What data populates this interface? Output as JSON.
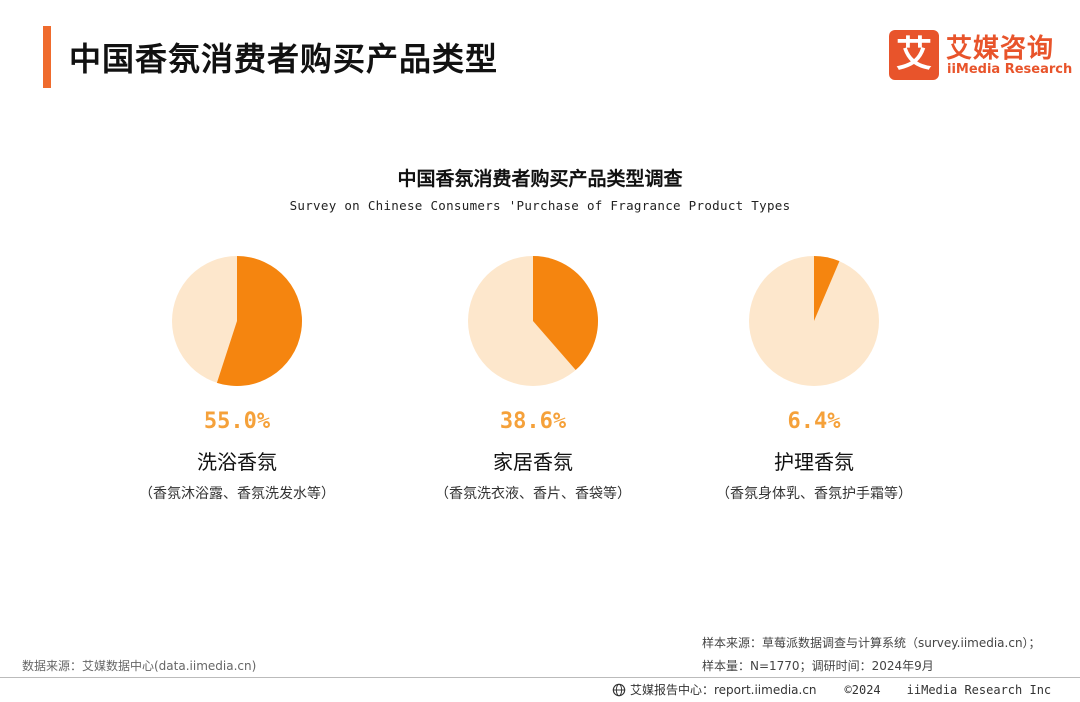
{
  "header": {
    "title": "中国香氛消费者购买产品类型",
    "logo_mark": "艾",
    "logo_cn": "艾媒咨询",
    "logo_en": "iiMedia Research"
  },
  "colors": {
    "accent": "#ef6b2d",
    "slice": "#f5850f",
    "rest": "#fde7cc",
    "value_text": "#f5a13a"
  },
  "chart_data": {
    "type": "pie",
    "title": "中国香氛消费者购买产品类型调查",
    "subtitle": "Survey on Chinese Consumers 'Purchase of Fragrance Product Types",
    "unit": "%",
    "items": [
      {
        "value": 55.0,
        "value_label": "55.0%",
        "label": "洗浴香氛",
        "desc": "（香氛沐浴露、香氛洗发水等）"
      },
      {
        "value": 38.6,
        "value_label": "38.6%",
        "label": "家居香氛",
        "desc": "（香氛洗衣液、香片、香袋等）"
      },
      {
        "value": 6.4,
        "value_label": "6.4%",
        "label": "护理香氛",
        "desc": "（香氛身体乳、香氛护手霜等）"
      }
    ]
  },
  "notes": {
    "sample_source": "样本来源：草莓派数据调查与计算系统（survey.iimedia.cn）；",
    "sample_size": "样本量：N=1770；调研时间：2024年9月",
    "data_source": "数据来源：艾媒数据中心(data.iimedia.cn)"
  },
  "footer": {
    "report_center": "艾媒报告中心：report.iimedia.cn",
    "copyright": "©2024",
    "brand": "iiMedia Research  Inc"
  }
}
